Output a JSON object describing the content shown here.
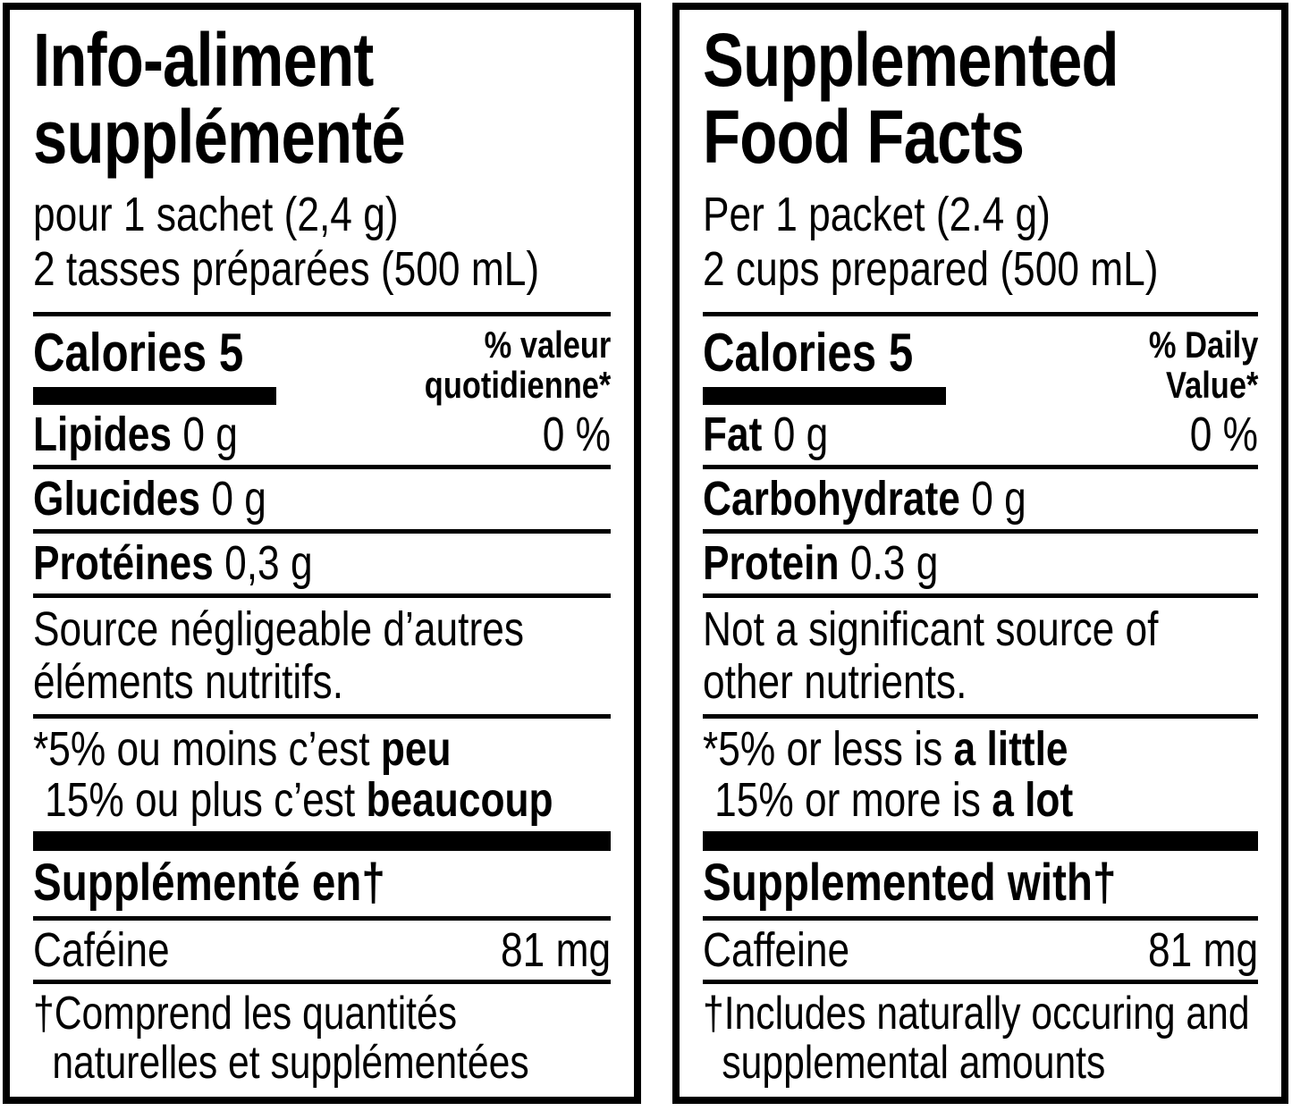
{
  "colors": {
    "ink": "#000000",
    "background": "#ffffff"
  },
  "panels": [
    {
      "language": "fr",
      "title_lines": [
        "Info-aliment",
        "supplémenté"
      ],
      "serving_lines": [
        "pour 1 sachet (2,4 g)",
        "2 tasses préparées (500 mL)"
      ],
      "calories_label": "Calories",
      "calories_value": "5",
      "dv_header_lines": [
        "% valeur",
        "quotidienne*"
      ],
      "nutrients": [
        {
          "label": "Lipides",
          "amount": "0 g",
          "dv": "0 %"
        },
        {
          "label": "Glucides",
          "amount": "0 g",
          "dv": ""
        },
        {
          "label": "Protéines",
          "amount": "0,3 g",
          "dv": ""
        }
      ],
      "note_lines": [
        "Source négligeable d’autres",
        "éléments nutritifs."
      ],
      "footnote_lines": [
        {
          "prefix": "*5% ou moins c’est ",
          "bold": "peu"
        },
        {
          "prefix": "15% ou plus c’est ",
          "bold": "beaucoup"
        }
      ],
      "supplemented_header": "Supplémenté en†",
      "supplement_rows": [
        {
          "label": "Caféine",
          "amount": "81 mg"
        }
      ],
      "dagger_note_lines": [
        "†Comprend les quantités",
        "naturelles et supplémentées"
      ]
    },
    {
      "language": "en",
      "title_lines": [
        "Supplemented",
        "Food Facts"
      ],
      "serving_lines": [
        "Per 1 packet (2.4 g)",
        "2 cups prepared (500 mL)"
      ],
      "calories_label": "Calories",
      "calories_value": "5",
      "dv_header_lines": [
        "% Daily",
        "Value*"
      ],
      "nutrients": [
        {
          "label": "Fat",
          "amount": "0 g",
          "dv": "0 %"
        },
        {
          "label": "Carbohydrate",
          "amount": "0 g",
          "dv": ""
        },
        {
          "label": "Protein",
          "amount": "0.3 g",
          "dv": ""
        }
      ],
      "note_lines": [
        "Not a significant source of",
        "other nutrients."
      ],
      "footnote_lines": [
        {
          "prefix": "*5% or less is ",
          "bold": "a little"
        },
        {
          "prefix": "15% or more is ",
          "bold": "a lot"
        }
      ],
      "supplemented_header": "Supplemented with†",
      "supplement_rows": [
        {
          "label": "Caffeine",
          "amount": "81 mg"
        }
      ],
      "dagger_note_lines": [
        "†Includes naturally occuring and",
        "supplemental amounts"
      ]
    }
  ]
}
